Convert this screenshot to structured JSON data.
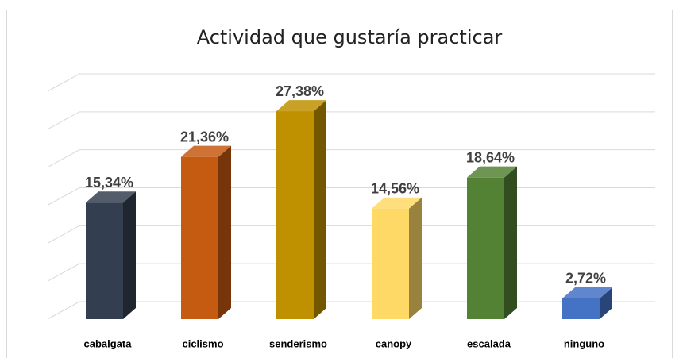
{
  "chart_data": {
    "type": "bar3d",
    "title": "Actividad que gustaría practicar",
    "categories": [
      "cabalgata",
      "ciclismo",
      "senderismo",
      "canopy",
      "escalada",
      "ninguno"
    ],
    "values": [
      15.34,
      21.36,
      27.38,
      14.56,
      18.64,
      2.72
    ],
    "value_labels": [
      "15,34%",
      "21,36%",
      "27,38%",
      "14,56%",
      "18,64%",
      "2,72%"
    ],
    "colors": [
      "#333f50",
      "#c55a11",
      "#bf9000",
      "#ffd966",
      "#548235",
      "#4472c4"
    ],
    "ylim": [
      0,
      30
    ],
    "yticks": [
      0,
      5,
      10,
      15,
      20,
      25,
      30
    ],
    "grid": true
  }
}
